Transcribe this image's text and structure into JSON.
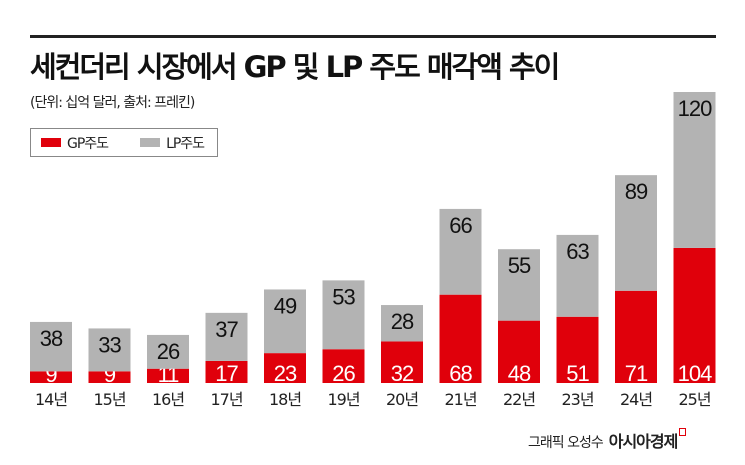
{
  "chart_data": {
    "type": "bar",
    "stacked": true,
    "title": "세컨더리 시장에서 GP 및 LP 주도 매각액 추이",
    "subtitle": "(단위: 십억 달러, 출처: 프레킨)",
    "categories": [
      "14년",
      "15년",
      "16년",
      "17년",
      "18년",
      "19년",
      "20년",
      "21년",
      "22년",
      "23년",
      "24년",
      "25년"
    ],
    "series": [
      {
        "name": "GP주도",
        "color": "#e0000b",
        "values": [
          9,
          9,
          11,
          17,
          23,
          26,
          32,
          68,
          48,
          51,
          71,
          104
        ]
      },
      {
        "name": "LP주도",
        "color": "#b3b3b3",
        "values": [
          38,
          33,
          26,
          37,
          49,
          53,
          28,
          66,
          55,
          63,
          89,
          120
        ]
      }
    ],
    "legend_position": "top-left",
    "grid": false,
    "ylim": [
      0,
      224
    ]
  },
  "credit": {
    "text": "그래픽 오성수",
    "brand": "아시아경제"
  }
}
